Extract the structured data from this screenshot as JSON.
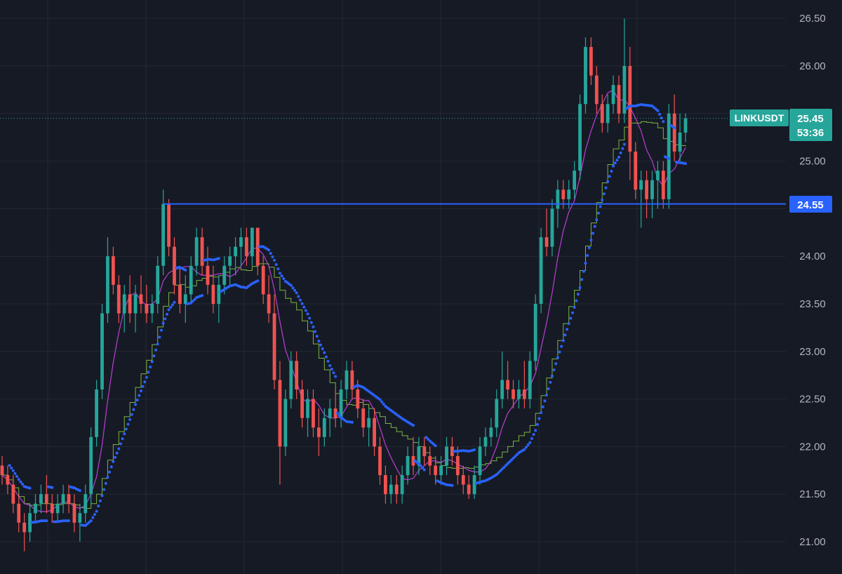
{
  "chart_data": {
    "type": "candlestick",
    "symbol": "LINKUSDT",
    "last_price_label": "25.45",
    "countdown_label": "53:36",
    "level_label": "24.55",
    "last_price": 25.45,
    "support_level": 24.55,
    "ylim": [
      20.75,
      26.65
    ],
    "y_ticks": [
      21.0,
      21.5,
      22.0,
      22.5,
      23.0,
      23.5,
      24.0,
      24.5,
      25.0,
      25.5,
      26.0,
      26.5
    ],
    "y_tick_labels": [
      "21.00",
      "21.50",
      "22.00",
      "22.50",
      "23.00",
      "23.50",
      "24.00",
      "24.50",
      "25.00",
      "25.50",
      "26.00",
      "26.50"
    ],
    "grid": true,
    "colors": {
      "background": "#161a25",
      "grid": "#242833",
      "up": "#26a69a",
      "down": "#ef5350",
      "level_line": "#2962ff",
      "ma_fast": "#b03cc8",
      "ma_slow": "#7cb342",
      "sar": "#2962ff",
      "symbol_badge": "#26a69a",
      "level_badge": "#2962ff"
    },
    "candles": [
      [
        21.8,
        21.9,
        21.6,
        21.7
      ],
      [
        21.7,
        21.8,
        21.5,
        21.6
      ],
      [
        21.6,
        21.7,
        21.3,
        21.4
      ],
      [
        21.4,
        21.5,
        21.1,
        21.2
      ],
      [
        21.2,
        21.3,
        20.9,
        21.1
      ],
      [
        21.1,
        21.4,
        21.0,
        21.3
      ],
      [
        21.3,
        21.5,
        21.2,
        21.4
      ],
      [
        21.4,
        21.6,
        21.3,
        21.5
      ],
      [
        21.5,
        21.7,
        21.3,
        21.4
      ],
      [
        21.4,
        21.5,
        21.2,
        21.3
      ],
      [
        21.3,
        21.5,
        21.2,
        21.4
      ],
      [
        21.4,
        21.6,
        21.3,
        21.5
      ],
      [
        21.5,
        21.6,
        21.3,
        21.4
      ],
      [
        21.4,
        21.5,
        21.1,
        21.2
      ],
      [
        21.2,
        21.4,
        21.0,
        21.3
      ],
      [
        21.3,
        21.6,
        21.2,
        21.5
      ],
      [
        21.5,
        22.2,
        21.4,
        22.1
      ],
      [
        22.1,
        22.7,
        22.0,
        22.6
      ],
      [
        22.6,
        23.5,
        22.5,
        23.4
      ],
      [
        23.4,
        24.2,
        23.3,
        24.0
      ],
      [
        24.0,
        24.1,
        23.6,
        23.7
      ],
      [
        23.7,
        23.8,
        23.3,
        23.4
      ],
      [
        23.4,
        23.7,
        23.2,
        23.6
      ],
      [
        23.6,
        23.8,
        23.3,
        23.4
      ],
      [
        23.4,
        23.7,
        23.2,
        23.6
      ],
      [
        23.6,
        23.8,
        23.4,
        23.5
      ],
      [
        23.5,
        23.7,
        23.3,
        23.4
      ],
      [
        23.4,
        23.6,
        23.3,
        23.5
      ],
      [
        23.5,
        24.0,
        23.4,
        23.9
      ],
      [
        23.9,
        24.7,
        23.8,
        24.55
      ],
      [
        24.55,
        24.6,
        24.0,
        24.1
      ],
      [
        24.1,
        24.2,
        23.6,
        23.7
      ],
      [
        23.7,
        23.9,
        23.4,
        23.5
      ],
      [
        23.5,
        23.8,
        23.3,
        23.6
      ],
      [
        23.6,
        24.0,
        23.5,
        23.9
      ],
      [
        23.9,
        24.3,
        23.8,
        24.2
      ],
      [
        24.2,
        24.3,
        23.8,
        23.9
      ],
      [
        23.9,
        24.1,
        23.6,
        23.7
      ],
      [
        23.7,
        23.9,
        23.4,
        23.5
      ],
      [
        23.5,
        23.8,
        23.3,
        23.7
      ],
      [
        23.7,
        24.0,
        23.6,
        23.9
      ],
      [
        23.9,
        24.1,
        23.7,
        24.0
      ],
      [
        24.0,
        24.2,
        23.8,
        24.1
      ],
      [
        24.1,
        24.3,
        23.9,
        24.2
      ],
      [
        24.2,
        24.3,
        23.9,
        24.0
      ],
      [
        24.0,
        24.3,
        23.9,
        24.3
      ],
      [
        24.3,
        24.3,
        23.8,
        23.9
      ],
      [
        23.9,
        24.0,
        23.5,
        23.6
      ],
      [
        23.6,
        23.8,
        23.3,
        23.4
      ],
      [
        23.4,
        23.6,
        22.6,
        22.7
      ],
      [
        22.7,
        22.9,
        21.6,
        22.0
      ],
      [
        22.0,
        22.6,
        21.9,
        22.5
      ],
      [
        22.5,
        23.0,
        22.4,
        22.9
      ],
      [
        22.9,
        23.0,
        22.5,
        22.6
      ],
      [
        22.6,
        22.7,
        22.2,
        22.3
      ],
      [
        22.3,
        22.6,
        22.1,
        22.5
      ],
      [
        22.5,
        22.6,
        22.1,
        22.2
      ],
      [
        22.2,
        22.4,
        21.9,
        22.1
      ],
      [
        22.1,
        22.4,
        22.0,
        22.3
      ],
      [
        22.3,
        22.5,
        22.1,
        22.4
      ],
      [
        22.4,
        22.6,
        22.2,
        22.3
      ],
      [
        22.3,
        22.7,
        22.2,
        22.6
      ],
      [
        22.6,
        22.9,
        22.5,
        22.8
      ],
      [
        22.8,
        22.9,
        22.5,
        22.6
      ],
      [
        22.6,
        22.7,
        22.3,
        22.4
      ],
      [
        22.4,
        22.5,
        22.1,
        22.2
      ],
      [
        22.2,
        22.4,
        22.0,
        22.3
      ],
      [
        22.3,
        22.4,
        21.9,
        22.0
      ],
      [
        22.0,
        22.1,
        21.6,
        21.7
      ],
      [
        21.7,
        21.8,
        21.4,
        21.5
      ],
      [
        21.5,
        21.7,
        21.4,
        21.6
      ],
      [
        21.6,
        21.7,
        21.4,
        21.5
      ],
      [
        21.5,
        21.8,
        21.4,
        21.7
      ],
      [
        21.7,
        22.0,
        21.6,
        21.9
      ],
      [
        21.9,
        22.1,
        21.7,
        21.8
      ],
      [
        21.8,
        22.1,
        21.7,
        22.0
      ],
      [
        22.0,
        22.1,
        21.8,
        21.9
      ],
      [
        21.9,
        22.0,
        21.7,
        21.8
      ],
      [
        21.8,
        21.9,
        21.6,
        21.7
      ],
      [
        21.7,
        21.9,
        21.6,
        21.8
      ],
      [
        21.8,
        22.1,
        21.7,
        22.0
      ],
      [
        22.0,
        22.1,
        21.8,
        21.9
      ],
      [
        21.9,
        22.0,
        21.6,
        21.7
      ],
      [
        21.7,
        21.8,
        21.5,
        21.6
      ],
      [
        21.6,
        21.7,
        21.45,
        21.5
      ],
      [
        21.5,
        21.8,
        21.45,
        21.7
      ],
      [
        21.7,
        22.1,
        21.6,
        22.0
      ],
      [
        22.0,
        22.2,
        21.9,
        22.1
      ],
      [
        22.1,
        22.3,
        22.0,
        22.2
      ],
      [
        22.2,
        22.6,
        22.1,
        22.5
      ],
      [
        22.5,
        23.0,
        22.4,
        22.7
      ],
      [
        22.7,
        22.9,
        22.5,
        22.6
      ],
      [
        22.6,
        22.7,
        22.4,
        22.5
      ],
      [
        22.5,
        22.7,
        22.4,
        22.6
      ],
      [
        22.6,
        22.9,
        22.4,
        22.5
      ],
      [
        22.5,
        23.0,
        22.4,
        22.9
      ],
      [
        22.9,
        23.6,
        22.8,
        23.5
      ],
      [
        23.5,
        24.3,
        23.4,
        24.2
      ],
      [
        24.2,
        24.5,
        24.0,
        24.1
      ],
      [
        24.1,
        24.6,
        24.0,
        24.5
      ],
      [
        24.5,
        24.8,
        24.3,
        24.7
      ],
      [
        24.7,
        24.8,
        24.5,
        24.6
      ],
      [
        24.6,
        24.8,
        24.5,
        24.7
      ],
      [
        24.7,
        25.0,
        24.6,
        24.9
      ],
      [
        24.9,
        25.7,
        24.8,
        25.6
      ],
      [
        25.6,
        26.3,
        25.5,
        26.2
      ],
      [
        26.2,
        26.3,
        25.8,
        25.9
      ],
      [
        25.9,
        26.0,
        25.5,
        25.6
      ],
      [
        25.6,
        25.7,
        25.3,
        25.4
      ],
      [
        25.4,
        25.7,
        25.3,
        25.6
      ],
      [
        25.6,
        25.9,
        25.5,
        25.8
      ],
      [
        25.8,
        25.9,
        25.4,
        25.5
      ],
      [
        25.5,
        26.5,
        25.4,
        26.0
      ],
      [
        26.0,
        26.2,
        24.8,
        25.1
      ],
      [
        25.1,
        25.2,
        24.6,
        24.7
      ],
      [
        24.7,
        24.9,
        24.3,
        24.8
      ],
      [
        24.8,
        24.9,
        24.4,
        24.6
      ],
      [
        24.6,
        24.9,
        24.4,
        24.8
      ],
      [
        24.8,
        25.0,
        24.5,
        24.9
      ],
      [
        24.9,
        25.0,
        24.5,
        24.6
      ],
      [
        24.6,
        25.6,
        24.5,
        25.5
      ],
      [
        25.5,
        25.7,
        25.0,
        25.1
      ],
      [
        25.1,
        25.5,
        25.0,
        25.3
      ],
      [
        25.3,
        25.5,
        25.2,
        25.45
      ]
    ]
  }
}
